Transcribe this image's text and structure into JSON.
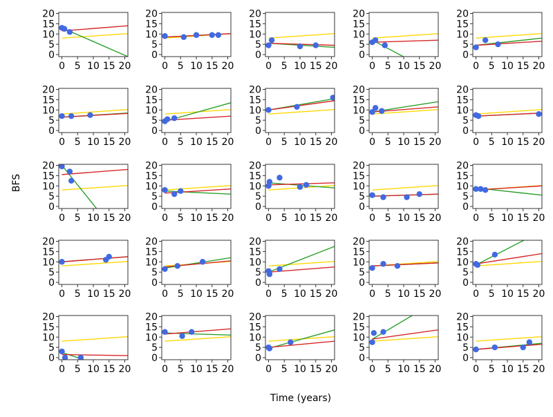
{
  "figure": {
    "ylabel": "BFS",
    "xlabel": "Time (years)",
    "colors": {
      "points": "#4169e1",
      "green_line": "#2ca02c",
      "red_line": "#d62728",
      "yellow_line": "#ffd700",
      "frame": "#333333"
    },
    "grid": "5x5",
    "shared_axes": {
      "x_ticks": [
        0,
        5,
        10,
        15,
        20
      ],
      "y_ticks": [
        0,
        5,
        10,
        15,
        20
      ],
      "xlim": [
        -1,
        21
      ],
      "ylim": [
        -1,
        20.5
      ]
    },
    "reference_line": {
      "start": 8,
      "end": 10.2
    }
  },
  "chart_data": [
    {
      "type": "scatter",
      "points": [
        [
          0,
          13
        ],
        [
          0.8,
          12.5
        ],
        [
          2.5,
          11
        ]
      ],
      "green": {
        "start": 13,
        "end": -1
      },
      "red": {
        "start": 11.5,
        "end": 14
      }
    },
    {
      "type": "scatter",
      "points": [
        [
          0,
          9
        ],
        [
          6,
          8.5
        ],
        [
          10,
          9.5
        ],
        [
          15,
          9.5
        ],
        [
          17,
          9.5
        ]
      ],
      "green": {
        "start": 8.5,
        "end": 10.2
      },
      "red": {
        "start": 8.5,
        "end": 10.2
      }
    },
    {
      "type": "scatter",
      "points": [
        [
          0,
          4.5
        ],
        [
          1,
          7
        ],
        [
          10,
          4
        ],
        [
          15,
          4.5
        ]
      ],
      "green": {
        "start": 5.5,
        "end": 3.5
      },
      "red": {
        "start": 5.5,
        "end": 4.5
      }
    },
    {
      "type": "scatter",
      "points": [
        [
          0,
          6
        ],
        [
          1,
          7
        ],
        [
          4,
          4.5
        ]
      ],
      "green": {
        "start": 7,
        "end": -10
      },
      "red": {
        "start": 6,
        "end": 7
      }
    },
    {
      "type": "scatter",
      "points": [
        [
          0,
          3.5
        ],
        [
          3,
          7
        ],
        [
          7,
          5
        ]
      ],
      "green": {
        "start": 4.5,
        "end": 8
      },
      "red": {
        "start": 4.5,
        "end": 6.5
      }
    },
    {
      "type": "scatter",
      "points": [
        [
          0,
          7
        ],
        [
          3,
          7
        ],
        [
          9,
          7.5
        ]
      ],
      "green": {
        "start": 6.5,
        "end": 8.5
      },
      "red": {
        "start": 6.5,
        "end": 8.3
      }
    },
    {
      "type": "scatter",
      "points": [
        [
          0,
          4.5
        ],
        [
          0.8,
          5.5
        ],
        [
          3,
          6
        ]
      ],
      "green": {
        "start": 4.5,
        "end": 13.5
      },
      "red": {
        "start": 5,
        "end": 7
      }
    },
    {
      "type": "scatter",
      "points": [
        [
          0,
          10
        ],
        [
          9,
          11.5
        ],
        [
          20.5,
          16
        ]
      ],
      "green": {
        "start": 10,
        "end": 15.5
      },
      "red": {
        "start": 10,
        "end": 14.5
      }
    },
    {
      "type": "scatter",
      "points": [
        [
          0,
          9
        ],
        [
          1,
          11
        ],
        [
          3,
          9.5
        ]
      ],
      "green": {
        "start": 9,
        "end": 14
      },
      "red": {
        "start": 9,
        "end": 11.5
      }
    },
    {
      "type": "scatter",
      "points": [
        [
          0,
          7.5
        ],
        [
          0.8,
          7
        ],
        [
          20,
          8
        ]
      ],
      "green": {
        "start": 7,
        "end": 8.5
      },
      "red": {
        "start": 7,
        "end": 8.5
      }
    },
    {
      "type": "scatter",
      "points": [
        [
          0,
          19.5
        ],
        [
          2.5,
          17
        ],
        [
          3,
          12.5
        ]
      ],
      "green": {
        "start": 20,
        "end": -20
      },
      "red": {
        "start": 15.5,
        "end": 18
      }
    },
    {
      "type": "scatter",
      "points": [
        [
          0,
          8
        ],
        [
          3,
          6
        ],
        [
          5,
          7.5
        ]
      ],
      "green": {
        "start": 7.5,
        "end": 6
      },
      "red": {
        "start": 6.5,
        "end": 8.5
      }
    },
    {
      "type": "scatter",
      "points": [
        [
          0,
          10
        ],
        [
          0.3,
          12
        ],
        [
          3.5,
          14
        ],
        [
          10,
          9.5
        ],
        [
          12,
          10.5
        ]
      ],
      "green": {
        "start": 11.5,
        "end": 9
      },
      "red": {
        "start": 10.5,
        "end": 11.5
      }
    },
    {
      "type": "scatter",
      "points": [
        [
          0,
          5.5
        ],
        [
          3.5,
          4.5
        ],
        [
          11,
          4.5
        ],
        [
          15,
          6
        ]
      ],
      "green": {
        "start": 5,
        "end": 6
      },
      "red": {
        "start": 5,
        "end": 6
      }
    },
    {
      "type": "scatter",
      "points": [
        [
          0,
          8.5
        ],
        [
          1.5,
          8.5
        ],
        [
          3,
          8
        ]
      ],
      "green": {
        "start": 9,
        "end": 5.5
      },
      "red": {
        "start": 8,
        "end": 10
      }
    },
    {
      "type": "scatter",
      "points": [
        [
          0,
          10
        ],
        [
          14,
          11
        ],
        [
          15,
          12.5
        ]
      ],
      "green": {
        "start": 10,
        "end": 12.5
      },
      "red": {
        "start": 10,
        "end": 12.5
      }
    },
    {
      "type": "scatter",
      "points": [
        [
          0,
          6.5
        ],
        [
          4,
          8
        ],
        [
          12,
          10
        ]
      ],
      "green": {
        "start": 7,
        "end": 12
      },
      "red": {
        "start": 7.5,
        "end": 10.5
      }
    },
    {
      "type": "scatter",
      "points": [
        [
          0,
          5.5
        ],
        [
          0.3,
          4
        ],
        [
          3.5,
          6.5
        ]
      ],
      "green": {
        "start": 5,
        "end": 17.5
      },
      "red": {
        "start": 5,
        "end": 7.5
      }
    },
    {
      "type": "scatter",
      "points": [
        [
          0,
          7
        ],
        [
          3.5,
          9
        ],
        [
          8,
          8
        ]
      ],
      "green": {
        "start": 8,
        "end": 9.5
      },
      "red": {
        "start": 8,
        "end": 9.5
      }
    },
    {
      "type": "scatter",
      "points": [
        [
          0,
          9
        ],
        [
          0.5,
          8.5
        ],
        [
          6,
          13.5
        ]
      ],
      "green": {
        "start": 8.5,
        "end": 25
      },
      "red": {
        "start": 9,
        "end": 14
      }
    },
    {
      "type": "scatter",
      "points": [
        [
          0,
          3
        ],
        [
          1,
          0
        ],
        [
          6,
          0
        ]
      ],
      "green": {
        "start": 2.5,
        "end": -8
      },
      "red": {
        "start": 1.5,
        "end": 1
      }
    },
    {
      "type": "scatter",
      "points": [
        [
          0,
          12.5
        ],
        [
          5.5,
          10.5
        ],
        [
          8.5,
          12.5
        ]
      ],
      "green": {
        "start": 12,
        "end": 11
      },
      "red": {
        "start": 11.5,
        "end": 14
      }
    },
    {
      "type": "scatter",
      "points": [
        [
          0,
          5
        ],
        [
          0.3,
          4.5
        ],
        [
          7,
          7.5
        ]
      ],
      "green": {
        "start": 4.5,
        "end": 13.5
      },
      "red": {
        "start": 5,
        "end": 8
      }
    },
    {
      "type": "scatter",
      "points": [
        [
          0,
          7.5
        ],
        [
          0.5,
          12
        ],
        [
          3.5,
          12.5
        ]
      ],
      "green": {
        "start": 9,
        "end": 28
      },
      "red": {
        "start": 9,
        "end": 13.5
      }
    },
    {
      "type": "scatter",
      "points": [
        [
          0,
          4
        ],
        [
          6,
          5
        ],
        [
          15,
          5
        ],
        [
          17,
          7.5
        ]
      ],
      "green": {
        "start": 4,
        "end": 7
      },
      "red": {
        "start": 4,
        "end": 6.5
      }
    }
  ]
}
